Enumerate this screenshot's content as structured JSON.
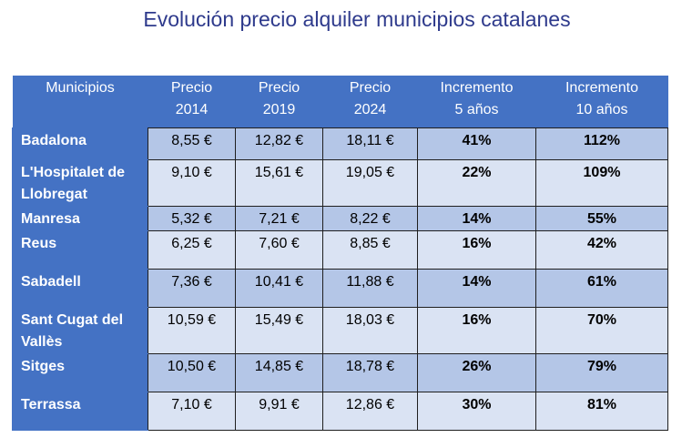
{
  "title": "Evolución precio alquiler municipios catalanes",
  "table": {
    "headers": [
      "Municipios",
      "Precio\n2014",
      "Precio\n2019",
      "Precio\n2024",
      "Incremento\n5 años",
      "Incremento\n10 años"
    ],
    "rows": [
      {
        "municipio": "Badalona",
        "p2014": "8,55 €",
        "p2019": "12,82 €",
        "p2024": "18,11 €",
        "inc5": "41%",
        "inc10": "112%"
      },
      {
        "municipio": "L'Hospitalet de Llobregat",
        "p2014": "9,10 €",
        "p2019": "15,61 €",
        "p2024": "19,05 €",
        "inc5": "22%",
        "inc10": "109%"
      },
      {
        "municipio": "Manresa",
        "p2014": "5,32 €",
        "p2019": "7,21 €",
        "p2024": "8,22 €",
        "inc5": "14%",
        "inc10": "55%"
      },
      {
        "municipio": "Reus",
        "p2014": "6,25 €",
        "p2019": "7,60 €",
        "p2024": "8,85 €",
        "inc5": "16%",
        "inc10": "42%"
      },
      {
        "municipio": "Sabadell",
        "p2014": "7,36 €",
        "p2019": "10,41 €",
        "p2024": "11,88 €",
        "inc5": "14%",
        "inc10": "61%"
      },
      {
        "municipio": "Sant Cugat del Vallès",
        "p2014": "10,59 €",
        "p2019": "15,49 €",
        "p2024": "18,03 €",
        "inc5": "16%",
        "inc10": "70%"
      },
      {
        "municipio": "Sitges",
        "p2014": "10,50 €",
        "p2019": "14,85 €",
        "p2024": "18,78 €",
        "inc5": "26%",
        "inc10": "79%"
      },
      {
        "municipio": "Terrassa",
        "p2014": "7,10 €",
        "p2019": "9,91 €",
        "p2024": "12,86 €",
        "inc5": "30%",
        "inc10": "81%"
      }
    ]
  },
  "colors": {
    "title": "#2E3A8C",
    "header_bg": "#4472C4",
    "row_dark": "#B4C6E7",
    "row_light": "#DAE3F3"
  }
}
